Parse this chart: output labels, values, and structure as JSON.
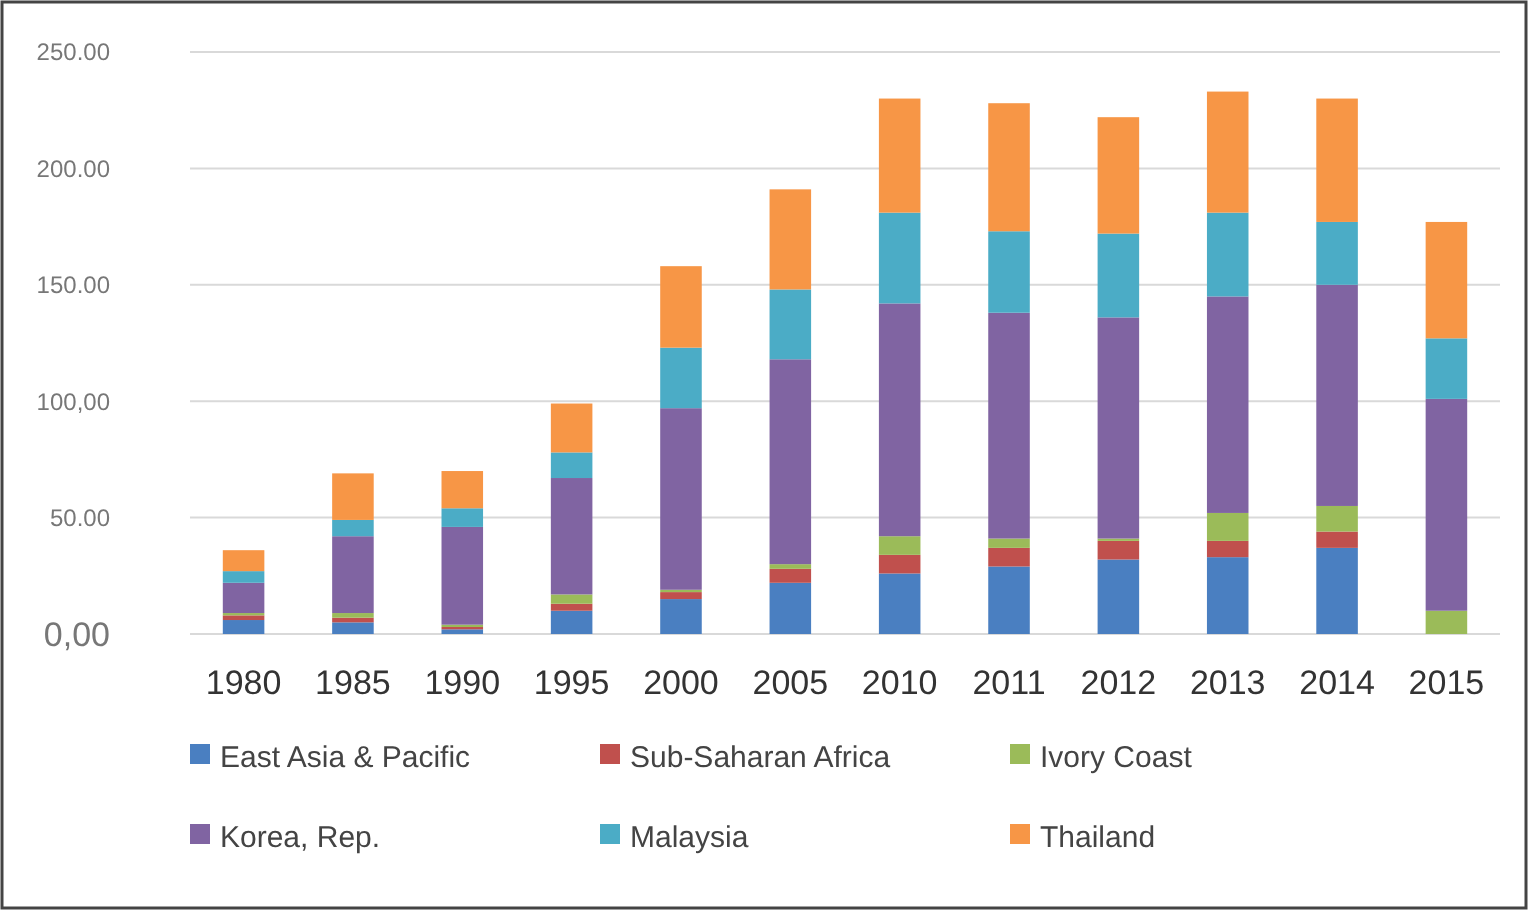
{
  "chart_data": {
    "type": "bar",
    "stacked": true,
    "categories": [
      "1980",
      "1985",
      "1990",
      "1995",
      "2000",
      "2005",
      "2010",
      "2011",
      "2012",
      "2013",
      "2014",
      "2015"
    ],
    "series": [
      {
        "name": "East Asia & Pacific",
        "color": "#4a7fc1",
        "values": [
          6,
          5,
          2,
          10,
          15,
          22,
          26,
          29,
          32,
          33,
          37,
          0
        ]
      },
      {
        "name": "Sub-Saharan Africa",
        "color": "#c0504d",
        "values": [
          2,
          2,
          1,
          3,
          3,
          6,
          8,
          8,
          8,
          7,
          7,
          0
        ]
      },
      {
        "name": "Ivory Coast",
        "color": "#9bbb59",
        "values": [
          1,
          2,
          1,
          4,
          1,
          2,
          8,
          4,
          1,
          12,
          11,
          10
        ]
      },
      {
        "name": "Korea, Rep.",
        "color": "#8064a2",
        "values": [
          13,
          33,
          42,
          50,
          78,
          88,
          100,
          97,
          95,
          93,
          95,
          91
        ]
      },
      {
        "name": "Malaysia",
        "color": "#4bacc6",
        "values": [
          5,
          7,
          8,
          11,
          26,
          30,
          39,
          35,
          36,
          36,
          27,
          26
        ]
      },
      {
        "name": "Thailand",
        "color": "#f79646",
        "values": [
          9,
          20,
          16,
          21,
          35,
          43,
          49,
          55,
          50,
          52,
          53,
          50
        ]
      }
    ],
    "ylim": [
      0,
      250
    ],
    "yticks": [
      {
        "value": 0,
        "label": "0,00"
      },
      {
        "value": 50,
        "label": "50.00"
      },
      {
        "value": 100,
        "label": "100,00"
      },
      {
        "value": 150,
        "label": "150.00"
      },
      {
        "value": 200,
        "label": "200.00"
      },
      {
        "value": 250,
        "label": "250.00"
      }
    ],
    "grid": "y",
    "legend": "bottom"
  }
}
